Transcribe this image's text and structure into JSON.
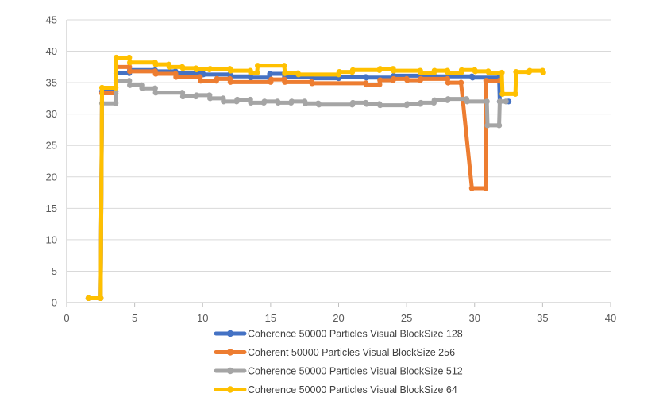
{
  "chart_data": {
    "type": "line",
    "title": "",
    "xlabel": "",
    "ylabel": "",
    "xlim": [
      0,
      40
    ],
    "ylim": [
      0,
      45
    ],
    "xticks": [
      0,
      5,
      10,
      15,
      20,
      25,
      30,
      35,
      40
    ],
    "yticks": [
      0,
      5,
      10,
      15,
      20,
      25,
      30,
      35,
      40,
      45
    ],
    "grid": "horizontal",
    "legend_position": "bottom",
    "series": [
      {
        "name": "Coherence 50000 Particles Visual BlockSize 128",
        "color": "#4472C4",
        "points": [
          [
            1.6,
            0.7
          ],
          [
            2.5,
            0.7
          ],
          [
            2.6,
            33.6
          ],
          [
            3.6,
            33.6
          ],
          [
            3.65,
            36.5
          ],
          [
            4.6,
            36.5
          ],
          [
            4.65,
            37.0
          ],
          [
            6.5,
            37.0
          ],
          [
            6.55,
            36.8
          ],
          [
            8.0,
            36.8
          ],
          [
            8.05,
            36.5
          ],
          [
            10.0,
            36.5
          ],
          [
            10.05,
            36.3
          ],
          [
            12.0,
            36.3
          ],
          [
            12.05,
            36.0
          ],
          [
            13.5,
            36.0
          ],
          [
            13.55,
            35.8
          ],
          [
            14.9,
            35.8
          ],
          [
            14.95,
            36.4
          ],
          [
            16.0,
            36.4
          ],
          [
            16.05,
            35.9
          ],
          [
            18.0,
            35.9
          ],
          [
            18.05,
            35.7
          ],
          [
            20.0,
            35.7
          ],
          [
            20.05,
            35.9
          ],
          [
            22.0,
            35.9
          ],
          [
            22.05,
            35.8
          ],
          [
            24.0,
            35.8
          ],
          [
            24.05,
            36.1
          ],
          [
            27.0,
            36.1
          ],
          [
            27.05,
            36.0
          ],
          [
            29.8,
            36.0
          ],
          [
            29.85,
            35.8
          ],
          [
            31.8,
            35.8
          ],
          [
            31.85,
            32.0
          ],
          [
            32.5,
            32.0
          ]
        ]
      },
      {
        "name": "Coherent 50000 Particles Visual BlockSize 256",
        "color": "#ED7D31",
        "points": [
          [
            1.6,
            0.7
          ],
          [
            2.5,
            0.7
          ],
          [
            2.6,
            33.3
          ],
          [
            3.6,
            33.3
          ],
          [
            3.65,
            37.5
          ],
          [
            4.6,
            37.5
          ],
          [
            4.65,
            36.8
          ],
          [
            6.5,
            36.8
          ],
          [
            6.55,
            36.4
          ],
          [
            8.0,
            36.4
          ],
          [
            8.05,
            35.9
          ],
          [
            9.8,
            35.9
          ],
          [
            9.85,
            35.3
          ],
          [
            11.0,
            35.3
          ],
          [
            11.05,
            35.6
          ],
          [
            12.0,
            35.6
          ],
          [
            12.05,
            35.1
          ],
          [
            15.0,
            35.1
          ],
          [
            15.05,
            35.5
          ],
          [
            16.0,
            35.5
          ],
          [
            16.05,
            35.1
          ],
          [
            18.0,
            35.1
          ],
          [
            18.05,
            34.9
          ],
          [
            22.0,
            34.9
          ],
          [
            22.05,
            34.7
          ],
          [
            23.0,
            34.7
          ],
          [
            23.05,
            35.4
          ],
          [
            24.0,
            35.4
          ],
          [
            24.05,
            35.6
          ],
          [
            25.0,
            35.6
          ],
          [
            25.05,
            35.4
          ],
          [
            26.0,
            35.4
          ],
          [
            26.05,
            35.6
          ],
          [
            28.0,
            35.6
          ],
          [
            28.05,
            35.0
          ],
          [
            29.0,
            35.0
          ],
          [
            29.8,
            18.2
          ],
          [
            30.8,
            18.2
          ],
          [
            30.85,
            35.3
          ],
          [
            31.8,
            35.3
          ]
        ]
      },
      {
        "name": "Coherence 50000 Particles Visual BlockSize 512",
        "color": "#A5A5A5",
        "points": [
          [
            1.6,
            0.7
          ],
          [
            2.5,
            0.7
          ],
          [
            2.6,
            31.7
          ],
          [
            3.6,
            31.7
          ],
          [
            3.65,
            35.3
          ],
          [
            4.6,
            35.3
          ],
          [
            4.65,
            34.6
          ],
          [
            5.5,
            34.6
          ],
          [
            5.55,
            34.1
          ],
          [
            6.5,
            34.1
          ],
          [
            6.55,
            33.4
          ],
          [
            8.5,
            33.4
          ],
          [
            8.55,
            32.8
          ],
          [
            9.5,
            32.8
          ],
          [
            9.55,
            33.0
          ],
          [
            10.5,
            33.0
          ],
          [
            10.55,
            32.5
          ],
          [
            11.5,
            32.5
          ],
          [
            11.55,
            32.0
          ],
          [
            12.5,
            32.0
          ],
          [
            12.55,
            32.3
          ],
          [
            13.5,
            32.3
          ],
          [
            13.55,
            31.8
          ],
          [
            14.5,
            31.8
          ],
          [
            14.55,
            32.0
          ],
          [
            15.5,
            32.0
          ],
          [
            15.55,
            31.8
          ],
          [
            16.5,
            31.8
          ],
          [
            16.55,
            32.0
          ],
          [
            17.5,
            32.0
          ],
          [
            17.55,
            31.7
          ],
          [
            18.5,
            31.7
          ],
          [
            18.55,
            31.5
          ],
          [
            21.0,
            31.5
          ],
          [
            21.05,
            31.8
          ],
          [
            22.0,
            31.8
          ],
          [
            22.05,
            31.6
          ],
          [
            23.0,
            31.6
          ],
          [
            23.05,
            31.4
          ],
          [
            25.0,
            31.4
          ],
          [
            25.05,
            31.6
          ],
          [
            26.0,
            31.6
          ],
          [
            26.05,
            31.8
          ],
          [
            27.0,
            31.8
          ],
          [
            27.05,
            32.2
          ],
          [
            28.0,
            32.2
          ],
          [
            28.05,
            32.4
          ],
          [
            29.4,
            32.4
          ],
          [
            29.45,
            32.0
          ],
          [
            30.9,
            32.0
          ],
          [
            30.95,
            28.2
          ],
          [
            31.8,
            28.2
          ],
          [
            31.85,
            32.0
          ],
          [
            32.3,
            32.0
          ]
        ]
      },
      {
        "name": "Coherence 50000 Particles Visual BlockSize 64",
        "color": "#FFC000",
        "points": [
          [
            1.6,
            0.7
          ],
          [
            2.5,
            0.7
          ],
          [
            2.6,
            34.2
          ],
          [
            3.6,
            34.2
          ],
          [
            3.65,
            39.0
          ],
          [
            4.6,
            39.0
          ],
          [
            4.65,
            38.2
          ],
          [
            6.5,
            38.2
          ],
          [
            6.55,
            37.9
          ],
          [
            7.5,
            37.9
          ],
          [
            7.55,
            37.5
          ],
          [
            8.5,
            37.5
          ],
          [
            8.55,
            37.3
          ],
          [
            9.5,
            37.3
          ],
          [
            9.55,
            37.1
          ],
          [
            10.5,
            37.1
          ],
          [
            10.55,
            37.2
          ],
          [
            12.0,
            37.2
          ],
          [
            12.05,
            36.9
          ],
          [
            13.5,
            36.9
          ],
          [
            13.55,
            36.6
          ],
          [
            14.0,
            36.6
          ],
          [
            14.05,
            37.7
          ],
          [
            16.0,
            37.7
          ],
          [
            16.05,
            36.5
          ],
          [
            17.0,
            36.5
          ],
          [
            17.05,
            36.3
          ],
          [
            20.0,
            36.3
          ],
          [
            20.05,
            36.7
          ],
          [
            21.0,
            36.7
          ],
          [
            21.05,
            37.0
          ],
          [
            23.0,
            37.0
          ],
          [
            23.05,
            37.2
          ],
          [
            24.0,
            37.2
          ],
          [
            24.05,
            36.9
          ],
          [
            26.0,
            36.9
          ],
          [
            26.05,
            36.6
          ],
          [
            27.0,
            36.6
          ],
          [
            27.05,
            36.9
          ],
          [
            28.0,
            36.9
          ],
          [
            28.05,
            36.6
          ],
          [
            29.0,
            36.6
          ],
          [
            29.05,
            37.0
          ],
          [
            30.0,
            37.0
          ],
          [
            30.05,
            36.8
          ],
          [
            31.0,
            36.8
          ],
          [
            31.05,
            36.6
          ],
          [
            32.0,
            36.6
          ],
          [
            32.05,
            33.2
          ],
          [
            33.0,
            33.2
          ],
          [
            33.05,
            36.7
          ],
          [
            34.0,
            36.7
          ],
          [
            34.05,
            36.9
          ],
          [
            35.0,
            36.9
          ],
          [
            35.05,
            36.6
          ]
        ]
      }
    ]
  }
}
